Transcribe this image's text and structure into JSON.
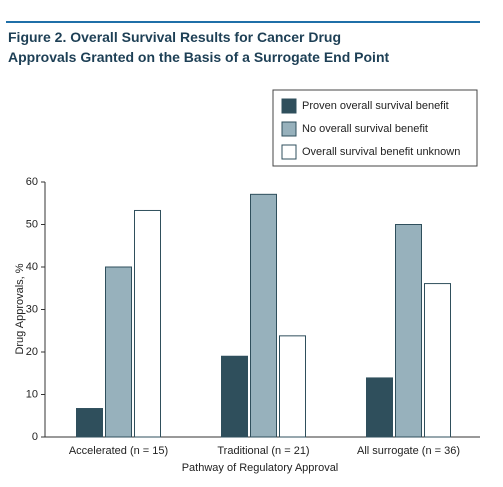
{
  "chart_data": {
    "type": "bar",
    "title": "Figure 2. Overall Survival Results for Cancer Drug Approvals Granted on the Basis of a Surrogate End Point",
    "x_label": "Pathway of Regulatory Approval",
    "y_label": "Drug Approvals, %",
    "categories": [
      "Accelerated (n = 15)",
      "Traditional (n = 21)",
      "All surrogate (n = 36)"
    ],
    "series": [
      {
        "name": "Proven overall survival benefit",
        "color": "#2f4f5c",
        "values": [
          6.7,
          19.0,
          13.9
        ]
      },
      {
        "name": "No overall survival benefit",
        "color": "#97b1bc",
        "values": [
          40.0,
          57.1,
          50.0
        ]
      },
      {
        "name": "Overall survival benefit unknown",
        "color": "#ffffff",
        "values": [
          53.3,
          23.8,
          36.1
        ]
      }
    ],
    "ylim": [
      0,
      60
    ],
    "yticks": [
      0,
      10,
      20,
      30,
      40,
      50,
      60
    ],
    "legend": "upper right"
  }
}
